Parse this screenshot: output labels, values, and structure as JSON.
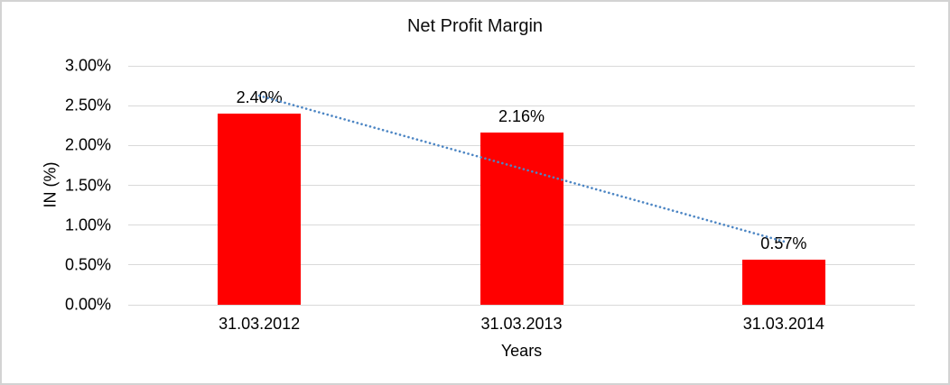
{
  "chart": {
    "title": "Net Profit Margin",
    "y_axis_title": "IN (%)",
    "x_axis_title": "Years"
  },
  "chart_data": {
    "type": "bar",
    "title": "Net Profit Margin",
    "xlabel": "Years",
    "ylabel": "IN (%)",
    "categories": [
      "31.03.2012",
      "31.03.2013",
      "31.03.2014"
    ],
    "values": [
      2.4,
      2.16,
      0.57
    ],
    "data_labels": [
      "2.40%",
      "2.16%",
      "0.57%"
    ],
    "ylim": [
      0,
      3.0
    ],
    "yticks": [
      {
        "value": 0.0,
        "label": "0.00%"
      },
      {
        "value": 0.5,
        "label": "0.50%"
      },
      {
        "value": 1.0,
        "label": "1.00%"
      },
      {
        "value": 1.5,
        "label": "1.50%"
      },
      {
        "value": 2.0,
        "label": "2.00%"
      },
      {
        "value": 2.5,
        "label": "2.50%"
      },
      {
        "value": 3.0,
        "label": "3.00%"
      }
    ],
    "grid": true,
    "legend": "none",
    "bar_color": "#ff0000",
    "gridline_color": "#d9d9d9",
    "text_color": "#000000",
    "trendline": {
      "type": "linear",
      "style": "dotted",
      "color": "#4d86c4",
      "fitted_values_at_ends": [
        2.625,
        0.795
      ]
    }
  }
}
